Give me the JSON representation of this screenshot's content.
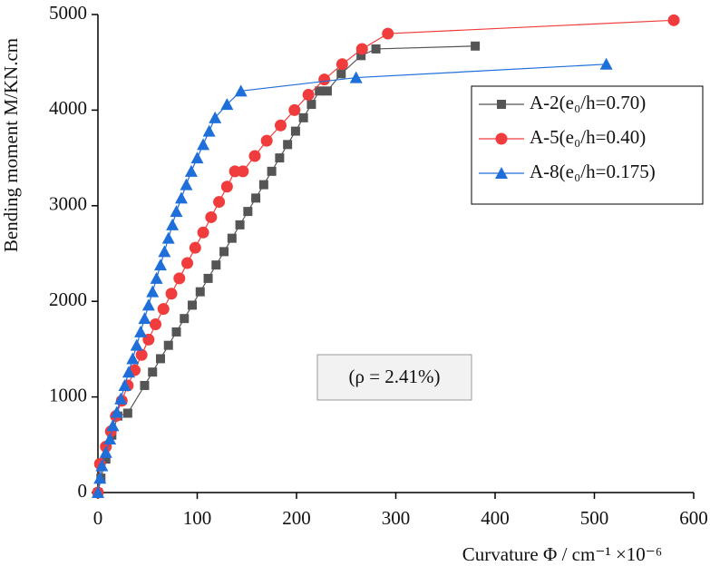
{
  "chart_data": {
    "type": "line",
    "xlabel": "Curvature Φ / cm⁻¹ ×10⁻⁶",
    "ylabel": "Bending moment M/KN.cm",
    "annotation": "(ρ = 2.41%)",
    "xlim": [
      0,
      600
    ],
    "xticks": [
      0,
      100,
      200,
      300,
      400,
      500,
      600
    ],
    "ylim": [
      0,
      5000
    ],
    "yticks": [
      0,
      1000,
      2000,
      3000,
      4000,
      5000
    ],
    "legend": "upper right",
    "series": [
      {
        "name": "A-2(e₀/h=0.70)",
        "color": "#555555",
        "marker": "square",
        "x": [
          0,
          3,
          8,
          14,
          20,
          30,
          47,
          55,
          63,
          71,
          79,
          87,
          95,
          103,
          111,
          119,
          127,
          135,
          143,
          151,
          159,
          167,
          175,
          183,
          191,
          199,
          207,
          215,
          223,
          231,
          245,
          265,
          280,
          380
        ],
        "values": [
          0,
          150,
          350,
          600,
          800,
          830,
          1120,
          1260,
          1400,
          1540,
          1680,
          1820,
          1960,
          2100,
          2240,
          2380,
          2520,
          2660,
          2800,
          2940,
          3080,
          3220,
          3360,
          3500,
          3640,
          3780,
          3920,
          4060,
          4200,
          4200,
          4380,
          4570,
          4640,
          4670
        ]
      },
      {
        "name": "A-5(e₀/h=0.40)",
        "color": "#f03c3c",
        "marker": "circle",
        "x": [
          0,
          2,
          8,
          13,
          18,
          24,
          30,
          37,
          44,
          51,
          58,
          66,
          74,
          82,
          90,
          98,
          106,
          114,
          122,
          130,
          138,
          146,
          158,
          170,
          184,
          198,
          212,
          228,
          246,
          266,
          292,
          580
        ],
        "values": [
          0,
          300,
          480,
          640,
          800,
          960,
          1120,
          1280,
          1440,
          1600,
          1760,
          1920,
          2080,
          2240,
          2400,
          2560,
          2720,
          2880,
          3040,
          3200,
          3360,
          3360,
          3520,
          3680,
          3840,
          4000,
          4160,
          4320,
          4480,
          4640,
          4800,
          4940
        ]
      },
      {
        "name": "A-8(e₀/h=0.175)",
        "color": "#1f6fdb",
        "marker": "triangle",
        "x": [
          0,
          2,
          4,
          8,
          12,
          15,
          19,
          23,
          27,
          31,
          35,
          39,
          43,
          47,
          51,
          55,
          59,
          63,
          67,
          71,
          75,
          79,
          84,
          89,
          94,
          100,
          106,
          112,
          118,
          130,
          144,
          260,
          512
        ],
        "values": [
          0,
          150,
          280,
          420,
          560,
          700,
          840,
          980,
          1120,
          1260,
          1400,
          1540,
          1680,
          1820,
          1960,
          2100,
          2240,
          2380,
          2520,
          2660,
          2800,
          2940,
          3080,
          3220,
          3360,
          3500,
          3640,
          3780,
          3920,
          4060,
          4200,
          4340,
          4480
        ]
      }
    ]
  }
}
